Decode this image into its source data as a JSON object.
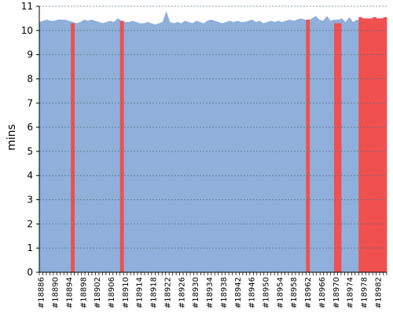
{
  "chart_data": {
    "type": "area",
    "title": "",
    "xlabel": "",
    "ylabel": "mins",
    "ylim": [
      0,
      11
    ],
    "yticks": [
      0,
      1,
      2,
      3,
      4,
      5,
      6,
      7,
      8,
      9,
      10,
      11
    ],
    "grid": true,
    "x_start": 18886,
    "x_end": 18984,
    "x_tick_labels": [
      "#18886",
      "#18890",
      "#18894",
      "#18898",
      "#18902",
      "#18906",
      "#18910",
      "#18914",
      "#18918",
      "#18922",
      "#18926",
      "#18930",
      "#18934",
      "#18938",
      "#18942",
      "#18946",
      "#18950",
      "#18954",
      "#18958",
      "#18962",
      "#18966",
      "#18970",
      "#18974",
      "#18978",
      "#18982"
    ],
    "series": [
      {
        "status": "success",
        "color": "#8eb0da",
        "values": [
          10.35,
          10.4,
          10.45,
          10.4,
          10.4,
          10.45,
          10.45,
          10.45,
          10.4,
          10.35,
          10.3,
          10.35,
          10.45,
          10.4,
          10.45,
          10.4,
          10.35,
          10.3,
          10.35,
          10.4,
          10.35,
          10.5,
          10.4,
          10.35,
          10.35,
          10.4,
          10.35,
          10.3,
          10.3,
          10.35,
          10.3,
          10.25,
          10.3,
          10.35,
          10.8,
          10.35,
          10.3,
          10.35,
          10.3,
          10.4,
          10.35,
          10.3,
          10.4,
          10.35,
          10.3,
          10.4,
          10.45,
          10.4,
          10.35,
          10.3,
          10.35,
          10.4,
          10.35,
          10.4,
          10.35,
          10.35,
          10.4,
          10.45,
          10.35,
          10.4,
          10.3,
          10.35,
          10.4,
          10.35,
          10.4,
          10.35,
          10.4,
          10.45,
          10.4,
          10.45,
          10.5,
          10.45,
          10.4,
          10.5,
          10.6,
          10.45,
          10.4,
          10.6,
          10.4,
          10.45,
          10.45,
          10.5,
          10.35,
          10.55,
          10.35,
          10.45,
          10.4,
          10.35,
          10.45,
          10.3,
          10.35,
          10.3,
          10.5,
          10.5
        ]
      },
      {
        "status": "failure",
        "color": "#f05050",
        "builds": [
          {
            "x": 18895,
            "value": 10.3
          },
          {
            "x": 18909,
            "value": 10.4
          },
          {
            "x": 18962,
            "value": 10.45
          },
          {
            "x": 18970,
            "value": 10.3
          },
          {
            "x": 18971,
            "value": 10.3
          },
          {
            "x": 18977,
            "value": 10.55
          },
          {
            "x": 18978,
            "value": 10.5
          },
          {
            "x": 18979,
            "value": 10.5
          },
          {
            "x": 18980,
            "value": 10.5
          },
          {
            "x": 18981,
            "value": 10.55
          },
          {
            "x": 18982,
            "value": 10.5
          },
          {
            "x": 18983,
            "value": 10.5
          },
          {
            "x": 18984,
            "value": 10.55
          }
        ]
      }
    ]
  }
}
